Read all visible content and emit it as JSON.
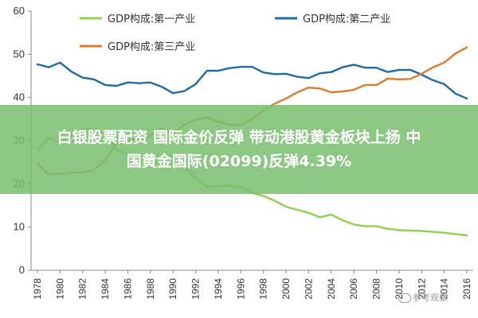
{
  "chart_data": {
    "type": "line",
    "xlabel": "",
    "ylabel": "",
    "ylim": [
      0,
      60
    ],
    "yticks": [
      0,
      10,
      20,
      30,
      40,
      50,
      60
    ],
    "xlim": [
      1978,
      2016
    ],
    "xticks": [
      1978,
      1980,
      1982,
      1984,
      1986,
      1988,
      1990,
      1992,
      1994,
      1996,
      1998,
      2000,
      2002,
      2004,
      2006,
      2008,
      2010,
      2012,
      2014,
      2016
    ],
    "grid": false,
    "legend_position": "top",
    "series": [
      {
        "name": "GDP构成:第一产业",
        "color": "#92D050",
        "x": [
          1978,
          1979,
          1980,
          1981,
          1982,
          1983,
          1984,
          1985,
          1986,
          1987,
          1988,
          1989,
          1990,
          1991,
          1992,
          1993,
          1994,
          1995,
          1996,
          1997,
          1998,
          1999,
          2000,
          2001,
          2002,
          2003,
          2004,
          2005,
          2006,
          2007,
          2008,
          2009,
          2010,
          2011,
          2012,
          2013,
          2014,
          2015,
          2016
        ],
        "values": [
          27.7,
          30.7,
          29.6,
          31.3,
          32.8,
          32.6,
          31.5,
          27.9,
          26.6,
          26.3,
          25.2,
          24.6,
          26.6,
          24.0,
          21.3,
          19.3,
          19.5,
          19.6,
          19.3,
          17.9,
          17.2,
          16.1,
          14.7,
          14.0,
          13.3,
          12.3,
          12.9,
          11.6,
          10.6,
          10.2,
          10.2,
          9.6,
          9.3,
          9.2,
          9.1,
          8.9,
          8.7,
          8.4,
          8.1
        ]
      },
      {
        "name": "GDP构成:第二产业",
        "color": "#1F6BA5",
        "x": [
          1978,
          1979,
          1980,
          1981,
          1982,
          1983,
          1984,
          1985,
          1986,
          1987,
          1988,
          1989,
          1990,
          1991,
          1992,
          1993,
          1994,
          1995,
          1996,
          1997,
          1998,
          1999,
          2000,
          2001,
          2002,
          2003,
          2004,
          2005,
          2006,
          2007,
          2008,
          2009,
          2010,
          2011,
          2012,
          2013,
          2014,
          2015,
          2016
        ],
        "values": [
          47.7,
          47.0,
          48.1,
          46.0,
          44.6,
          44.2,
          42.9,
          42.7,
          43.5,
          43.3,
          43.5,
          42.5,
          41.0,
          41.5,
          43.1,
          46.2,
          46.2,
          46.8,
          47.1,
          47.1,
          45.8,
          45.4,
          45.5,
          44.8,
          44.5,
          45.6,
          45.9,
          47.0,
          47.6,
          46.9,
          46.9,
          45.9,
          46.4,
          46.4,
          45.3,
          44.0,
          43.1,
          40.9,
          39.8
        ]
      },
      {
        "name": "GDP构成:第三产业",
        "color": "#E07B2E",
        "x": [
          1978,
          1979,
          1980,
          1981,
          1982,
          1983,
          1984,
          1985,
          1986,
          1987,
          1988,
          1989,
          1990,
          1991,
          1992,
          1993,
          1994,
          1995,
          1996,
          1997,
          1998,
          1999,
          2000,
          2001,
          2002,
          2003,
          2004,
          2005,
          2006,
          2007,
          2008,
          2009,
          2010,
          2011,
          2012,
          2013,
          2014,
          2015,
          2016
        ],
        "values": [
          24.6,
          22.3,
          22.3,
          22.7,
          22.6,
          23.2,
          25.5,
          29.4,
          29.9,
          30.5,
          31.2,
          32.9,
          31.5,
          33.7,
          34.8,
          35.4,
          34.4,
          33.7,
          33.6,
          35.0,
          37.0,
          38.6,
          39.8,
          41.2,
          42.3,
          42.1,
          41.2,
          41.4,
          41.8,
          42.9,
          42.9,
          44.4,
          44.2,
          44.3,
          45.5,
          47.0,
          48.1,
          50.2,
          51.6
        ]
      }
    ]
  },
  "banner": {
    "line1": "白银股票配资 国际金价反弹 带动港股黄金板块上扬 中",
    "line2": "国黄金国际(02099)反弹4.39%"
  },
  "watermark": {
    "text": "参考观察"
  }
}
